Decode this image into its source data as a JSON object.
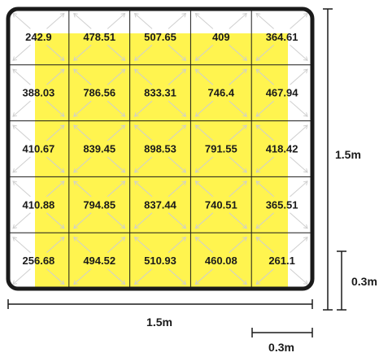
{
  "grid": {
    "rows": 5,
    "cols": 5,
    "values": [
      [
        "242.9",
        "478.51",
        "507.65",
        "409",
        "364.61"
      ],
      [
        "388.03",
        "786.56",
        "833.31",
        "746.4",
        "467.94"
      ],
      [
        "410.67",
        "839.45",
        "898.53",
        "791.55",
        "418.42"
      ],
      [
        "410.88",
        "794.85",
        "837.44",
        "740.51",
        "365.51"
      ],
      [
        "256.68",
        "494.52",
        "510.93",
        "460.08",
        "261.1"
      ]
    ]
  },
  "dimensions": {
    "room_width": "1.5m",
    "room_height": "1.5m",
    "cell_width": "0.3m",
    "cell_height": "0.3m"
  },
  "colors": {
    "highlight": "#fff44f",
    "border": "#1a1a1a",
    "grid_line": "#1a1a1a",
    "arrow": "#cfcfcf"
  }
}
